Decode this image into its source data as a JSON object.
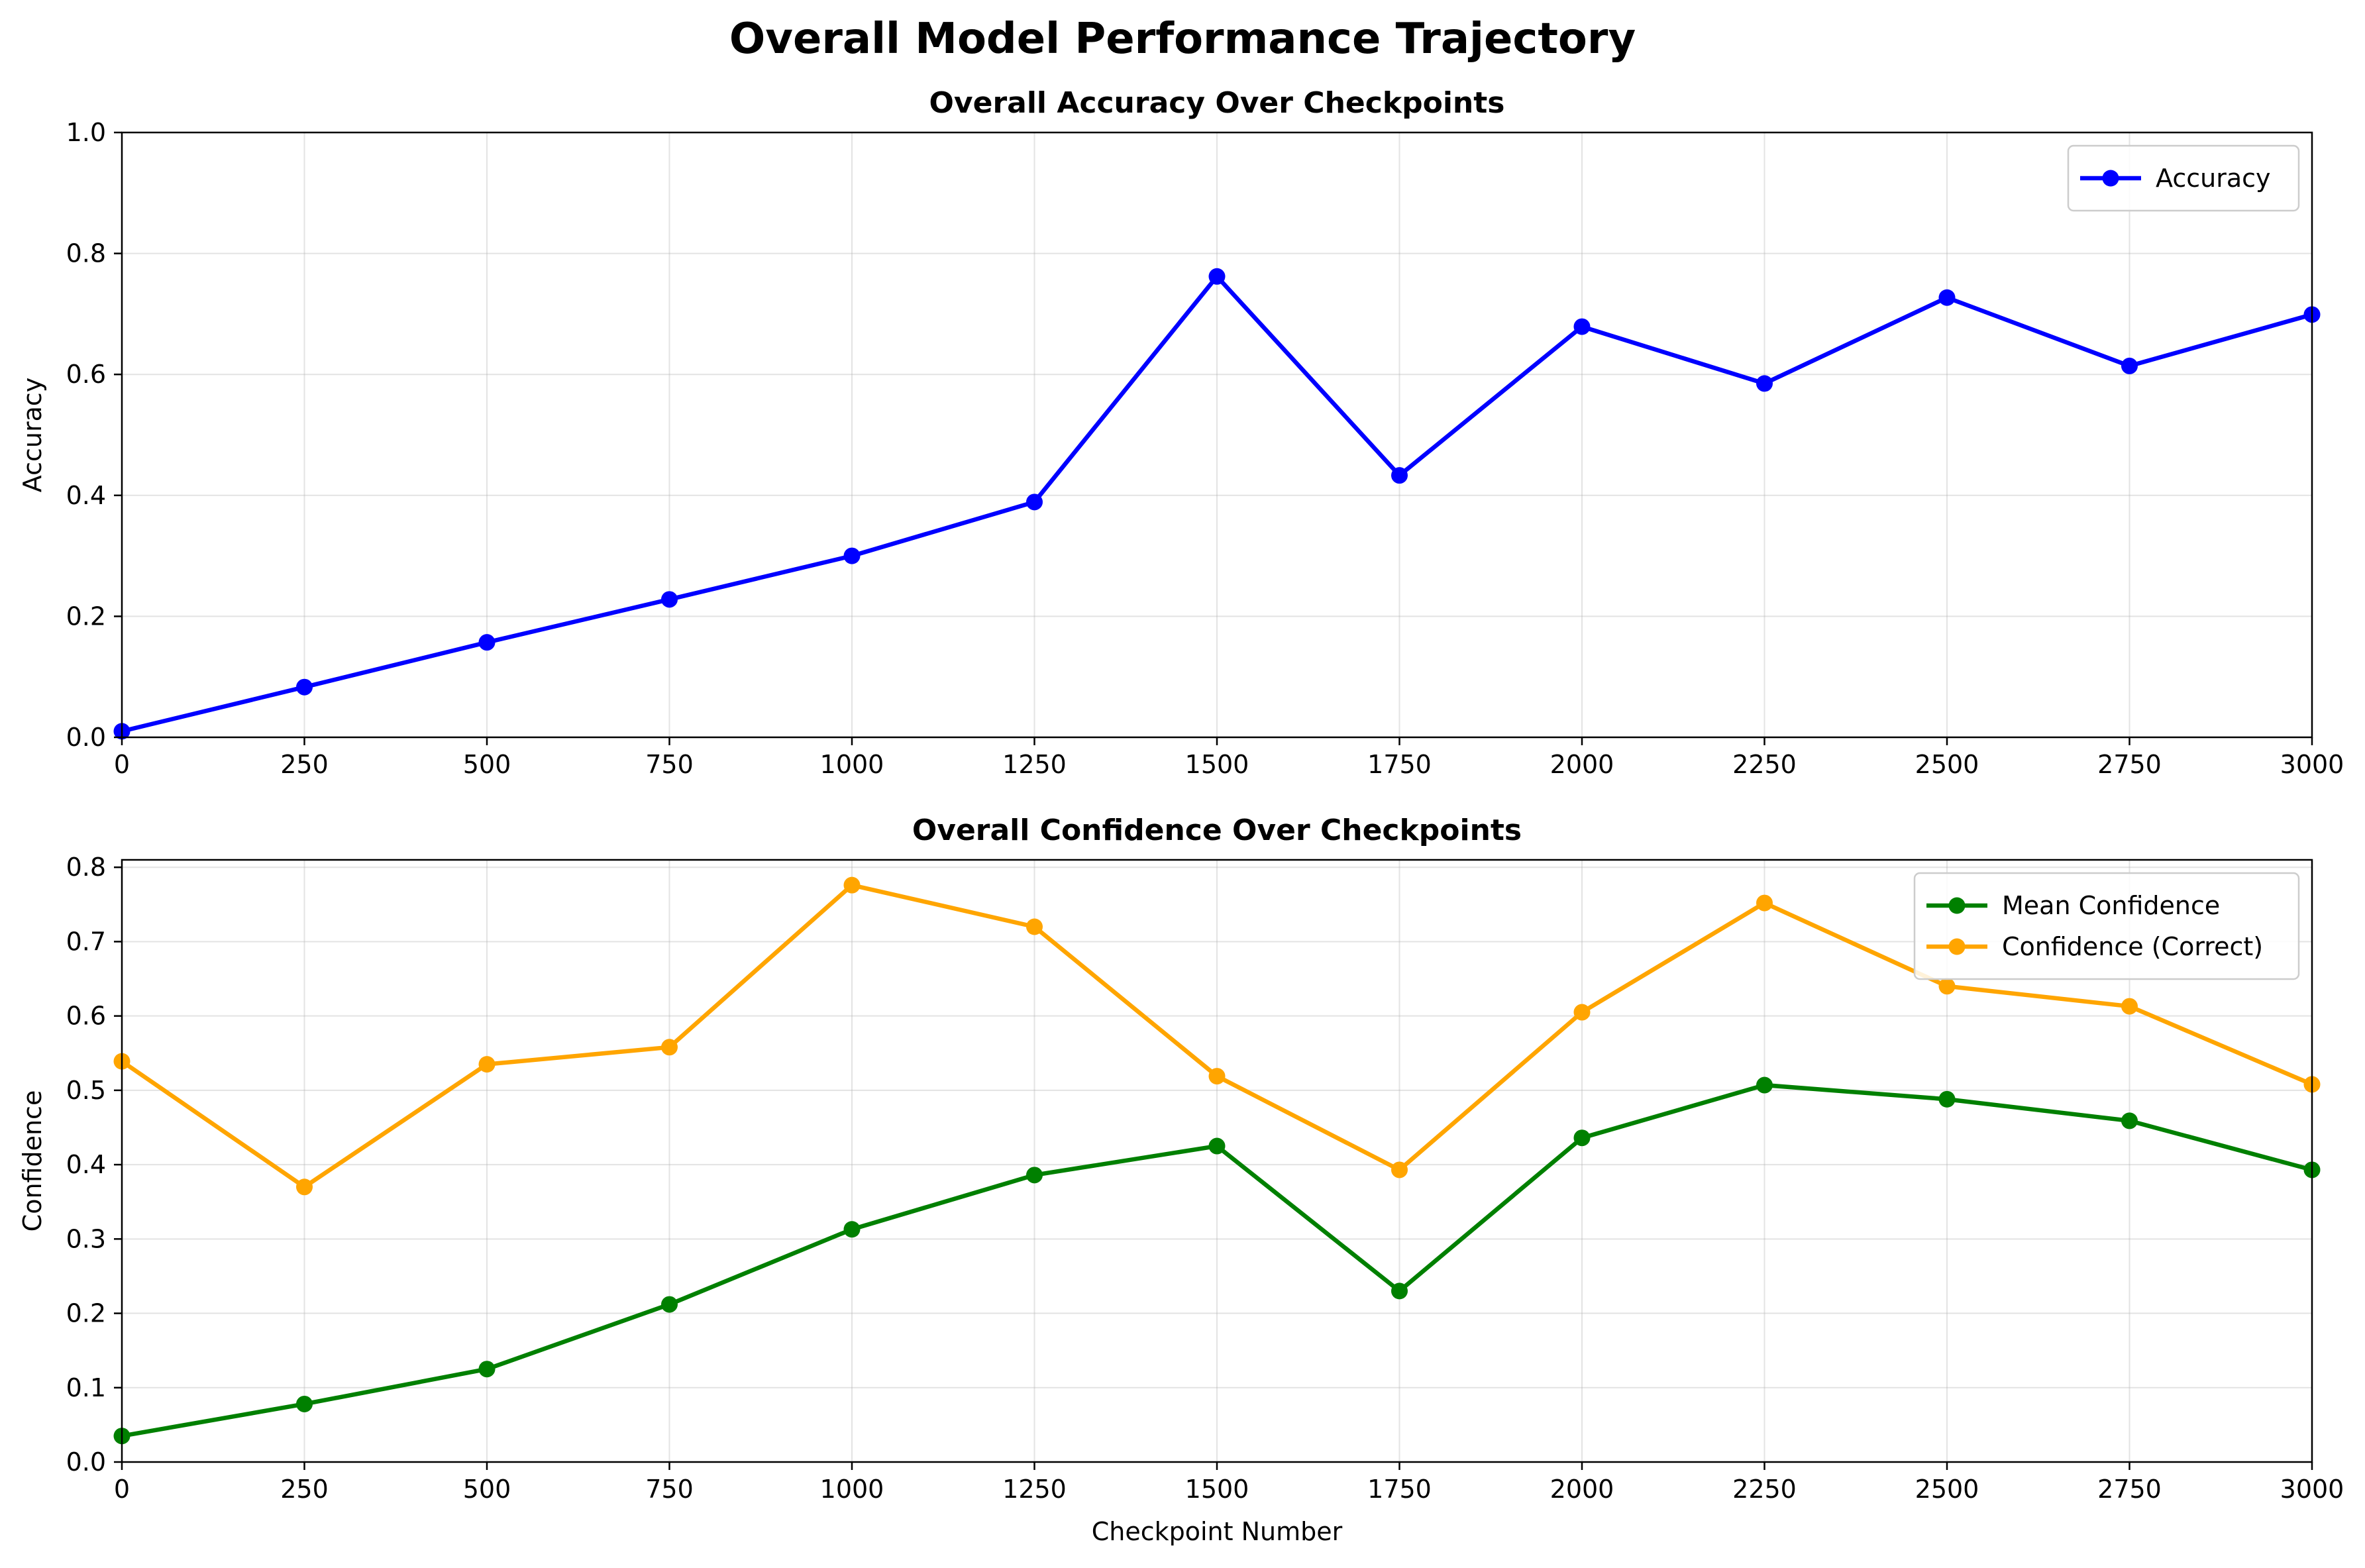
{
  "figure": {
    "title": "Overall Model Performance Trajectory"
  },
  "chart_data": [
    {
      "type": "line",
      "title": "Overall Accuracy Over Checkpoints",
      "xlabel": "",
      "ylabel": "Accuracy",
      "xlim": [
        0,
        3000
      ],
      "ylim": [
        0,
        1.0
      ],
      "xticks": [
        0,
        250,
        500,
        750,
        1000,
        1250,
        1500,
        1750,
        2000,
        2250,
        2500,
        2750,
        3000
      ],
      "yticks": [
        0.0,
        0.2,
        0.4,
        0.6,
        0.8,
        1.0
      ],
      "ytick_decimals": 1,
      "grid": true,
      "legend_position": "upper-right",
      "x": [
        0,
        250,
        500,
        750,
        1000,
        1250,
        1500,
        1750,
        2000,
        2250,
        2500,
        2750,
        3000
      ],
      "series": [
        {
          "name": "Accuracy",
          "color": "#0000ff",
          "values": [
            0.01,
            0.083,
            0.157,
            0.228,
            0.3,
            0.389,
            0.762,
            0.433,
            0.679,
            0.585,
            0.727,
            0.614,
            0.699
          ]
        }
      ]
    },
    {
      "type": "line",
      "title": "Overall Confidence Over Checkpoints",
      "xlabel": "Checkpoint Number",
      "ylabel": "Confidence",
      "xlim": [
        0,
        3000
      ],
      "ylim": [
        0,
        0.81
      ],
      "xticks": [
        0,
        250,
        500,
        750,
        1000,
        1250,
        1500,
        1750,
        2000,
        2250,
        2500,
        2750,
        3000
      ],
      "yticks": [
        0.0,
        0.1,
        0.2,
        0.3,
        0.4,
        0.5,
        0.6,
        0.7,
        0.8
      ],
      "ytick_decimals": 1,
      "grid": true,
      "legend_position": "upper-right",
      "x": [
        0,
        250,
        500,
        750,
        1000,
        1250,
        1500,
        1750,
        2000,
        2250,
        2500,
        2750,
        3000
      ],
      "series": [
        {
          "name": "Mean Confidence",
          "color": "#008000",
          "values": [
            0.035,
            0.078,
            0.125,
            0.212,
            0.313,
            0.386,
            0.425,
            0.23,
            0.436,
            0.507,
            0.488,
            0.459,
            0.393
          ]
        },
        {
          "name": "Confidence (Correct)",
          "color": "#ffa500",
          "values": [
            0.539,
            0.37,
            0.535,
            0.558,
            0.776,
            0.72,
            0.519,
            0.393,
            0.605,
            0.752,
            0.64,
            0.613,
            0.508
          ]
        }
      ]
    }
  ]
}
